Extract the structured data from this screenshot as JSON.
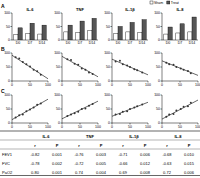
{
  "panels": [
    "A",
    "B",
    "C"
  ],
  "chart_data": [
    {
      "type": "bar",
      "title": "IL-6",
      "categories": [
        "D0",
        "D7",
        "D14"
      ],
      "ylim": [
        0,
        100
      ],
      "yticks": [
        0,
        50,
        100
      ],
      "series": [
        {
          "name": "Sham",
          "color": "#ffffff",
          "values": [
            20,
            25,
            22
          ]
        },
        {
          "name": "Treat",
          "color": "#555555",
          "values": [
            45,
            62,
            55
          ]
        }
      ]
    },
    {
      "type": "bar",
      "title": "TNF",
      "categories": [
        "D0",
        "D7",
        "D14"
      ],
      "ylim": [
        0,
        100
      ],
      "yticks": [
        0,
        50,
        100
      ],
      "series": [
        {
          "name": "Sham",
          "color": "#ffffff",
          "values": [
            30,
            28,
            35
          ]
        },
        {
          "name": "Treat",
          "color": "#555555",
          "values": [
            55,
            70,
            80
          ]
        }
      ]
    },
    {
      "type": "bar",
      "title": "IL-1β",
      "categories": [
        "D0",
        "D7",
        "D14"
      ],
      "ylim": [
        0,
        100
      ],
      "yticks": [
        0,
        50,
        100
      ],
      "series": [
        {
          "name": "Sham",
          "color": "#ffffff",
          "values": [
            25,
            30,
            28
          ]
        },
        {
          "name": "Treat",
          "color": "#555555",
          "values": [
            50,
            65,
            75
          ]
        }
      ]
    },
    {
      "type": "bar",
      "title": "IL-8",
      "categories": [
        "D0",
        "D7",
        "D14"
      ],
      "ylim": [
        0,
        100
      ],
      "yticks": [
        0,
        50,
        100
      ],
      "legend": "top",
      "series": [
        {
          "name": "Sham",
          "color": "#ffffff",
          "values": [
            22,
            26,
            30
          ]
        },
        {
          "name": "Treat",
          "color": "#555555",
          "values": [
            48,
            60,
            85
          ]
        }
      ]
    },
    {
      "type": "scatter",
      "color": "#333333",
      "xlim": [
        0,
        100
      ],
      "xticks": [
        0,
        50,
        100
      ],
      "ylim": [
        0,
        100
      ],
      "yticks": [
        0,
        50,
        100
      ],
      "x": [
        10,
        20,
        30,
        40,
        50,
        60,
        70,
        80
      ],
      "values": [
        85,
        80,
        68,
        60,
        52,
        40,
        35,
        22
      ],
      "fit": {
        "x": [
          0,
          100
        ],
        "values": [
          92,
          8
        ]
      }
    },
    {
      "type": "scatter",
      "color": "#333333",
      "xlim": [
        0,
        100
      ],
      "xticks": [
        0,
        50,
        100
      ],
      "ylim": [
        0,
        100
      ],
      "yticks": [
        0,
        50,
        100
      ],
      "x": [
        15,
        25,
        35,
        45,
        55,
        65,
        75,
        85
      ],
      "values": [
        78,
        75,
        62,
        58,
        45,
        40,
        30,
        25
      ],
      "fit": {
        "x": [
          0,
          100
        ],
        "values": [
          88,
          15
        ]
      }
    },
    {
      "type": "scatter",
      "color": "#333333",
      "xlim": [
        0,
        100
      ],
      "xticks": [
        0,
        50,
        100
      ],
      "ylim": [
        0,
        100
      ],
      "yticks": [
        0,
        50,
        100
      ],
      "x": [
        10,
        22,
        30,
        42,
        50,
        62,
        70,
        84
      ],
      "values": [
        70,
        72,
        60,
        55,
        50,
        42,
        38,
        30
      ],
      "fit": {
        "x": [
          0,
          100
        ],
        "values": [
          78,
          22
        ]
      }
    },
    {
      "type": "scatter",
      "color": "#333333",
      "xlim": [
        0,
        100
      ],
      "xticks": [
        0,
        50,
        100
      ],
      "ylim": [
        0,
        100
      ],
      "yticks": [
        0,
        50,
        100
      ],
      "x": [
        12,
        20,
        32,
        40,
        52,
        60,
        72,
        80
      ],
      "values": [
        65,
        60,
        58,
        50,
        45,
        40,
        36,
        28
      ],
      "fit": {
        "x": [
          0,
          100
        ],
        "values": [
          72,
          20
        ]
      }
    },
    {
      "type": "scatter",
      "color": "#333333",
      "xlim": [
        0,
        100
      ],
      "xticks": [
        0,
        50,
        100
      ],
      "ylim": [
        0,
        100
      ],
      "yticks": [
        0,
        50,
        100
      ],
      "x": [
        10,
        20,
        30,
        40,
        50,
        60,
        70,
        80
      ],
      "values": [
        20,
        28,
        30,
        42,
        48,
        55,
        65,
        70
      ],
      "fit": {
        "x": [
          0,
          100
        ],
        "values": [
          12,
          85
        ]
      }
    },
    {
      "type": "scatter",
      "color": "#333333",
      "xlim": [
        0,
        100
      ],
      "xticks": [
        0,
        50,
        100
      ],
      "ylim": [
        0,
        100
      ],
      "yticks": [
        0,
        50,
        100
      ],
      "x": [
        15,
        25,
        35,
        45,
        55,
        65,
        75,
        85
      ],
      "values": [
        25,
        30,
        35,
        40,
        50,
        52,
        62,
        68
      ],
      "fit": {
        "x": [
          0,
          100
        ],
        "values": [
          15,
          78
        ]
      }
    },
    {
      "type": "scatter",
      "color": "#333333",
      "xlim": [
        0,
        100
      ],
      "xticks": [
        0,
        50,
        100
      ],
      "ylim": [
        0,
        100
      ],
      "yticks": [
        0,
        50,
        100
      ],
      "x": [
        10,
        22,
        30,
        42,
        50,
        62,
        70,
        84
      ],
      "values": [
        30,
        32,
        40,
        42,
        50,
        55,
        60,
        66
      ],
      "fit": {
        "x": [
          0,
          100
        ],
        "values": [
          24,
          74
        ]
      }
    },
    {
      "type": "scatter",
      "color": "#333333",
      "xlim": [
        0,
        100
      ],
      "xticks": [
        0,
        50,
        100
      ],
      "ylim": [
        0,
        100
      ],
      "yticks": [
        0,
        50,
        100
      ],
      "x": [
        12,
        20,
        32,
        40,
        52,
        60,
        72,
        80
      ],
      "values": [
        22,
        30,
        32,
        45,
        50,
        58,
        60,
        72
      ],
      "fit": {
        "x": [
          0,
          100
        ],
        "values": [
          14,
          82
        ]
      }
    }
  ],
  "table": {
    "groups": [
      "IL-6",
      "TNF",
      "IL-1β",
      "IL-8"
    ],
    "columns": [
      "",
      "r",
      "P",
      "r",
      "P",
      "r",
      "P",
      "r",
      "P"
    ],
    "rows": [
      [
        "FEV1",
        "-0.82",
        "0.001",
        "-0.76",
        "0.003",
        "-0.71",
        "0.006",
        "-0.68",
        "0.010"
      ],
      [
        "FVC",
        "-0.78",
        "0.002",
        "-0.72",
        "0.005",
        "-0.66",
        "0.012",
        "-0.63",
        "0.015"
      ],
      [
        "PaO2",
        "0.80",
        "0.001",
        "0.74",
        "0.004",
        "0.69",
        "0.008",
        "0.72",
        "0.006"
      ]
    ]
  }
}
